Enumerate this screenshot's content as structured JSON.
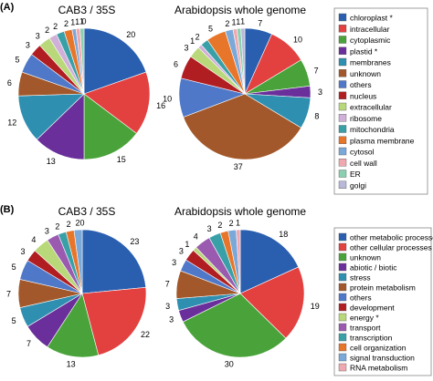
{
  "panels": [
    {
      "letter": "(A)",
      "legend": [
        "chloroplast *",
        "intracellular",
        "cytoplasmic",
        "plastid *",
        "membranes",
        "unknown",
        "others",
        "nucleus",
        "extracellular",
        "ribosome",
        "mitochondria",
        "plasma membrane",
        "cytosol",
        "cell wall",
        "ER",
        "golgi"
      ],
      "colors": [
        "#2a5fb0",
        "#e34040",
        "#4aa33a",
        "#6a2f9a",
        "#2f8fb0",
        "#a2582a",
        "#5078c8",
        "#b01e22",
        "#b8d87a",
        "#d0b0d8",
        "#3aa0a8",
        "#e8762a",
        "#7aa8d8",
        "#f0a8b0",
        "#8ad0b0",
        "#b8b8d8"
      ],
      "chart_data": [
        {
          "type": "pie",
          "title": "CAB3 / 35S",
          "categories": [
            "chloroplast *",
            "intracellular",
            "cytoplasmic",
            "plastid *",
            "membranes",
            "unknown",
            "others",
            "nucleus",
            "extracellular",
            "ribosome",
            "mitochondria",
            "plasma membrane",
            "cytosol",
            "cell wall",
            "ER",
            "golgi"
          ],
          "values": [
            20,
            16,
            15,
            13,
            12,
            6,
            5,
            3,
            3,
            2,
            2,
            2,
            1,
            1,
            1,
            0
          ],
          "labels": [
            "20",
            "16",
            "15",
            "13",
            "12",
            "6",
            "5",
            "3",
            "3",
            "2",
            "2",
            "2",
            "1",
            "1",
            "1",
            "0"
          ]
        },
        {
          "type": "pie",
          "title": "Arabidopsis whole genome",
          "categories": [
            "chloroplast *",
            "intracellular",
            "cytoplasmic",
            "plastid *",
            "membranes",
            "unknown",
            "others",
            "nucleus",
            "extracellular",
            "ribosome",
            "mitochondria",
            "plasma membrane",
            "cytosol",
            "cell wall",
            "ER",
            "golgi"
          ],
          "values": [
            7,
            10,
            7,
            3,
            8,
            37,
            10,
            6,
            3,
            1,
            2,
            5,
            2,
            1,
            1,
            1
          ],
          "labels": [
            "7",
            "10",
            "7",
            "3",
            "8",
            "37",
            "10",
            "6",
            "3",
            "1",
            "2",
            "5",
            "2",
            "1",
            "1",
            "1"
          ]
        }
      ]
    },
    {
      "letter": "(B)",
      "legend": [
        "other metabolic processes",
        "other cellular processes",
        "unknown",
        "abiotic / biotic",
        "stress",
        "protein metabolism",
        "others",
        "development",
        "energy *",
        "transport",
        "transcription",
        "cell organization",
        "signal transduction",
        "RNA metabolism"
      ],
      "colors": [
        "#2a5fb0",
        "#e34040",
        "#4aa33a",
        "#6a2f9a",
        "#2f8fb0",
        "#a2582a",
        "#5078c8",
        "#b01e22",
        "#b8d87a",
        "#9a5ab0",
        "#3aa0a8",
        "#e8762a",
        "#7aa8d8",
        "#f0a8b0"
      ],
      "chart_data": [
        {
          "type": "pie",
          "title": "CAB3 / 35S",
          "categories": [
            "other metabolic processes",
            "other cellular processes",
            "unknown",
            "abiotic / biotic",
            "stress",
            "protein metabolism",
            "others",
            "development",
            "energy *",
            "transport",
            "transcription",
            "cell organization",
            "signal transduction",
            "RNA metabolism"
          ],
          "values": [
            23,
            22,
            13,
            7,
            5,
            7,
            5,
            3,
            4,
            3,
            2,
            2,
            2,
            0
          ],
          "labels": [
            "23",
            "22",
            "13",
            "7",
            "5",
            "7",
            "5",
            "3",
            "4",
            "3",
            "2",
            "2",
            "2",
            "0"
          ]
        },
        {
          "type": "pie",
          "title": "Arabidopsis whole genome",
          "categories": [
            "other metabolic processes",
            "other cellular processes",
            "unknown",
            "abiotic / biotic",
            "stress",
            "protein metabolism",
            "others",
            "development",
            "energy *",
            "transport",
            "transcription",
            "cell organization",
            "signal transduction",
            "RNA metabolism"
          ],
          "values": [
            18,
            19,
            30,
            3,
            3,
            7,
            3,
            3,
            1,
            4,
            3,
            2,
            2,
            1
          ],
          "labels": [
            "18",
            "19",
            "30",
            "3",
            "3",
            "7",
            "3",
            "3",
            "1",
            "4",
            "3",
            "2",
            "2",
            "1"
          ]
        }
      ]
    }
  ]
}
